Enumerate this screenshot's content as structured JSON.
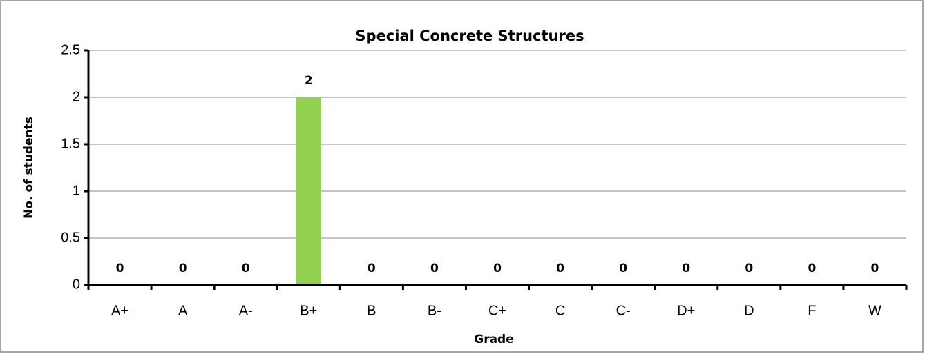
{
  "chart_data": {
    "type": "bar",
    "title": "Special Concrete Structures",
    "xlabel": "Grade",
    "ylabel": "No. of students",
    "categories": [
      "A+",
      "A",
      "A-",
      "B+",
      "B",
      "B-",
      "C+",
      "C",
      "C-",
      "D+",
      "D",
      "F",
      "W"
    ],
    "values": [
      0,
      0,
      0,
      2,
      0,
      0,
      0,
      0,
      0,
      0,
      0,
      0,
      0
    ],
    "color": "#92d050",
    "ylim": [
      0,
      2.5
    ],
    "yticks": [
      0,
      0.5,
      1,
      1.5,
      2,
      2.5
    ],
    "grid": true
  }
}
